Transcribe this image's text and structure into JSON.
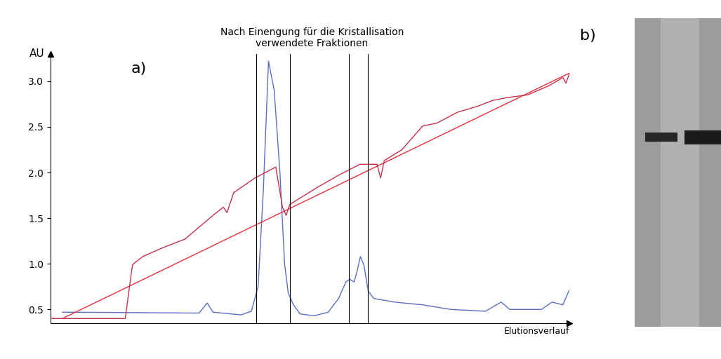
{
  "chart_data": {
    "type": "line",
    "title": "Nach Einengung für die Kristallisation\nverwendete Fraktionen",
    "panel_labels": [
      "a)",
      "b)"
    ],
    "x_label": "Elutionsverlauf",
    "y_label": "AU",
    "xlim": [
      0,
      100
    ],
    "ylim": [
      0.35,
      3.3
    ],
    "yticks": [
      0.5,
      {
        "value": 1,
        "label": "1.0"
      },
      1.5,
      {
        "value": 2,
        "label": "2.0"
      },
      2.5,
      {
        "value": 3,
        "label": "3.0"
      }
    ],
    "tick_labels": "y",
    "grid": false,
    "fraction_bounds": [
      39.6,
      46.1,
      57.5,
      61.2
    ],
    "fraction_color": "#000000",
    "series": [
      {
        "color": "#5b6fc4",
        "line_style": "solid",
        "x": [
          2.3,
          28.6,
          30.2,
          31.3,
          36.7,
          38.7,
          40.0,
          41.0,
          42.0,
          43.1,
          44.2,
          45.1,
          45.8,
          46.8,
          48.1,
          50.8,
          53.5,
          55.5,
          56.9,
          57.7,
          58.5,
          59.2,
          59.7,
          60.4,
          61.2,
          62.3,
          66.3,
          71.7,
          77.1,
          83.8,
          86.8,
          88.5,
          94.6,
          96.6,
          98.7,
          100
        ],
        "values": [
          0.47,
          0.46,
          0.57,
          0.47,
          0.44,
          0.48,
          0.75,
          1.8,
          3.22,
          2.9,
          2.0,
          1.0,
          0.68,
          0.55,
          0.45,
          0.43,
          0.47,
          0.62,
          0.8,
          0.83,
          0.8,
          0.95,
          1.08,
          0.98,
          0.7,
          0.62,
          0.58,
          0.55,
          0.5,
          0.48,
          0.58,
          0.5,
          0.5,
          0.58,
          0.55,
          0.72
        ]
      },
      {
        "color": "#e8303c",
        "line_style": "solid",
        "x": [
          2.3,
          100
        ],
        "values": [
          0.4,
          3.09
        ]
      },
      {
        "color": "#c8304a",
        "line_style": "solid",
        "x": [
          0,
          14.4,
          15.8,
          17.8,
          21.8,
          25.9,
          31.3,
          33.3,
          34.0,
          35.3,
          39.4,
          43.4,
          44.7,
          45.4,
          46.1,
          51.5,
          55.5,
          59.6,
          62.9,
          63.6,
          64.3,
          67.7,
          71.7,
          74.4,
          78.4,
          82.5,
          85.2,
          87.9,
          91.9,
          96.0,
          98.7,
          99.3,
          100
        ],
        "values": [
          0.4,
          0.4,
          0.99,
          1.08,
          1.18,
          1.27,
          1.53,
          1.62,
          1.56,
          1.78,
          1.94,
          2.06,
          1.62,
          1.53,
          1.65,
          1.84,
          1.97,
          2.09,
          2.09,
          1.94,
          2.13,
          2.25,
          2.51,
          2.54,
          2.66,
          2.73,
          2.79,
          2.82,
          2.85,
          2.95,
          3.04,
          2.98,
          3.09
        ]
      }
    ]
  }
}
